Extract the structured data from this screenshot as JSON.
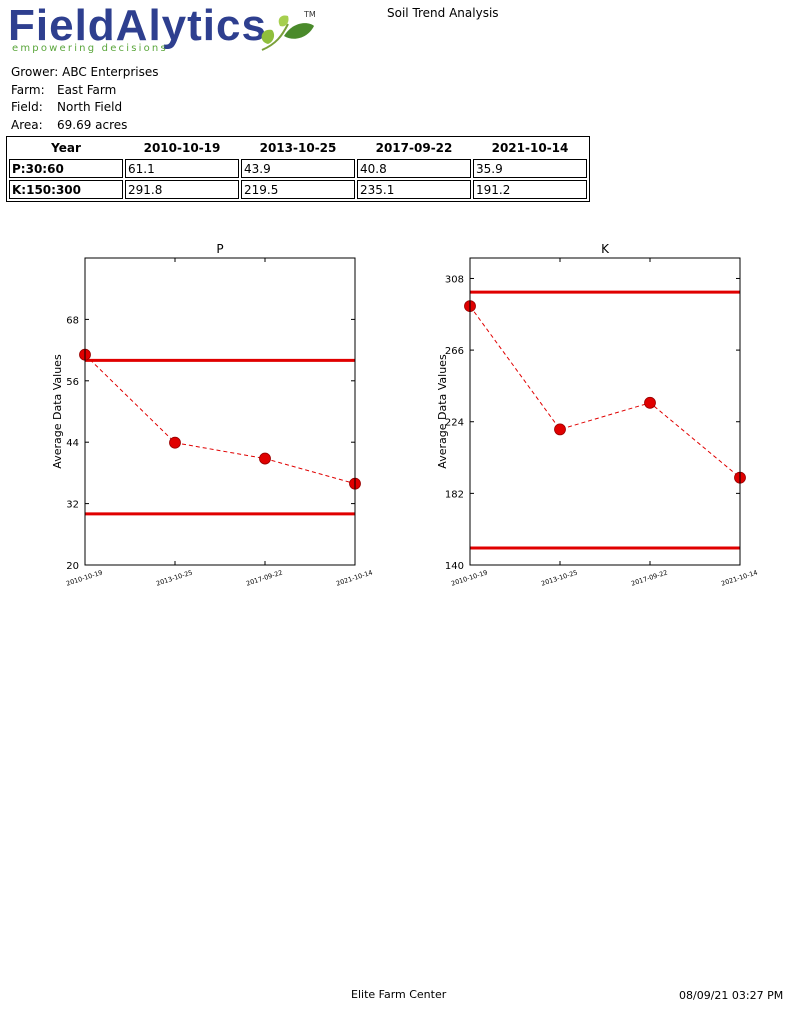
{
  "header": {
    "logo_text": "FieldAlytics",
    "logo_tagline": "empowering decisions",
    "logo_tm": "TM",
    "report_title": "Soil Trend Analysis"
  },
  "info": {
    "grower_label": "Grower:",
    "grower_value": "ABC Enterprises",
    "farm_label": "Farm:",
    "farm_value": "East Farm",
    "field_label": "Field:",
    "field_value": "North Field",
    "area_label": "Area:",
    "area_value": "69.69 acres"
  },
  "table": {
    "header": [
      "Year",
      "2010-10-19",
      "2013-10-25",
      "2017-09-22",
      "2021-10-14"
    ],
    "rows": [
      [
        "P:30:60",
        "61.1",
        "43.9",
        "40.8",
        "35.9"
      ],
      [
        "K:150:300",
        "291.8",
        "219.5",
        "235.1",
        "191.2"
      ]
    ]
  },
  "chart_data": [
    {
      "type": "line",
      "title": "P",
      "ylabel": "Average Data Values",
      "categories": [
        "2010-10-19",
        "2013-10-25",
        "2017-09-22",
        "2021-10-14"
      ],
      "values": [
        61.1,
        43.9,
        40.8,
        35.9
      ],
      "ylim": [
        20,
        80
      ],
      "yticks": [
        20,
        32,
        44,
        56,
        68
      ],
      "thresholds": [
        30,
        60
      ],
      "color": "#e00000"
    },
    {
      "type": "line",
      "title": "K",
      "ylabel": "Average Data Values",
      "categories": [
        "2010-10-19",
        "2013-10-25",
        "2017-09-22",
        "2021-10-14"
      ],
      "values": [
        291.8,
        219.5,
        235.1,
        191.2
      ],
      "ylim": [
        140,
        320
      ],
      "yticks": [
        140,
        182,
        224,
        266,
        308
      ],
      "thresholds": [
        150,
        300
      ],
      "color": "#e00000"
    }
  ],
  "footer": {
    "center": "Elite Farm Center",
    "right": "08/09/21 03:27 PM"
  }
}
